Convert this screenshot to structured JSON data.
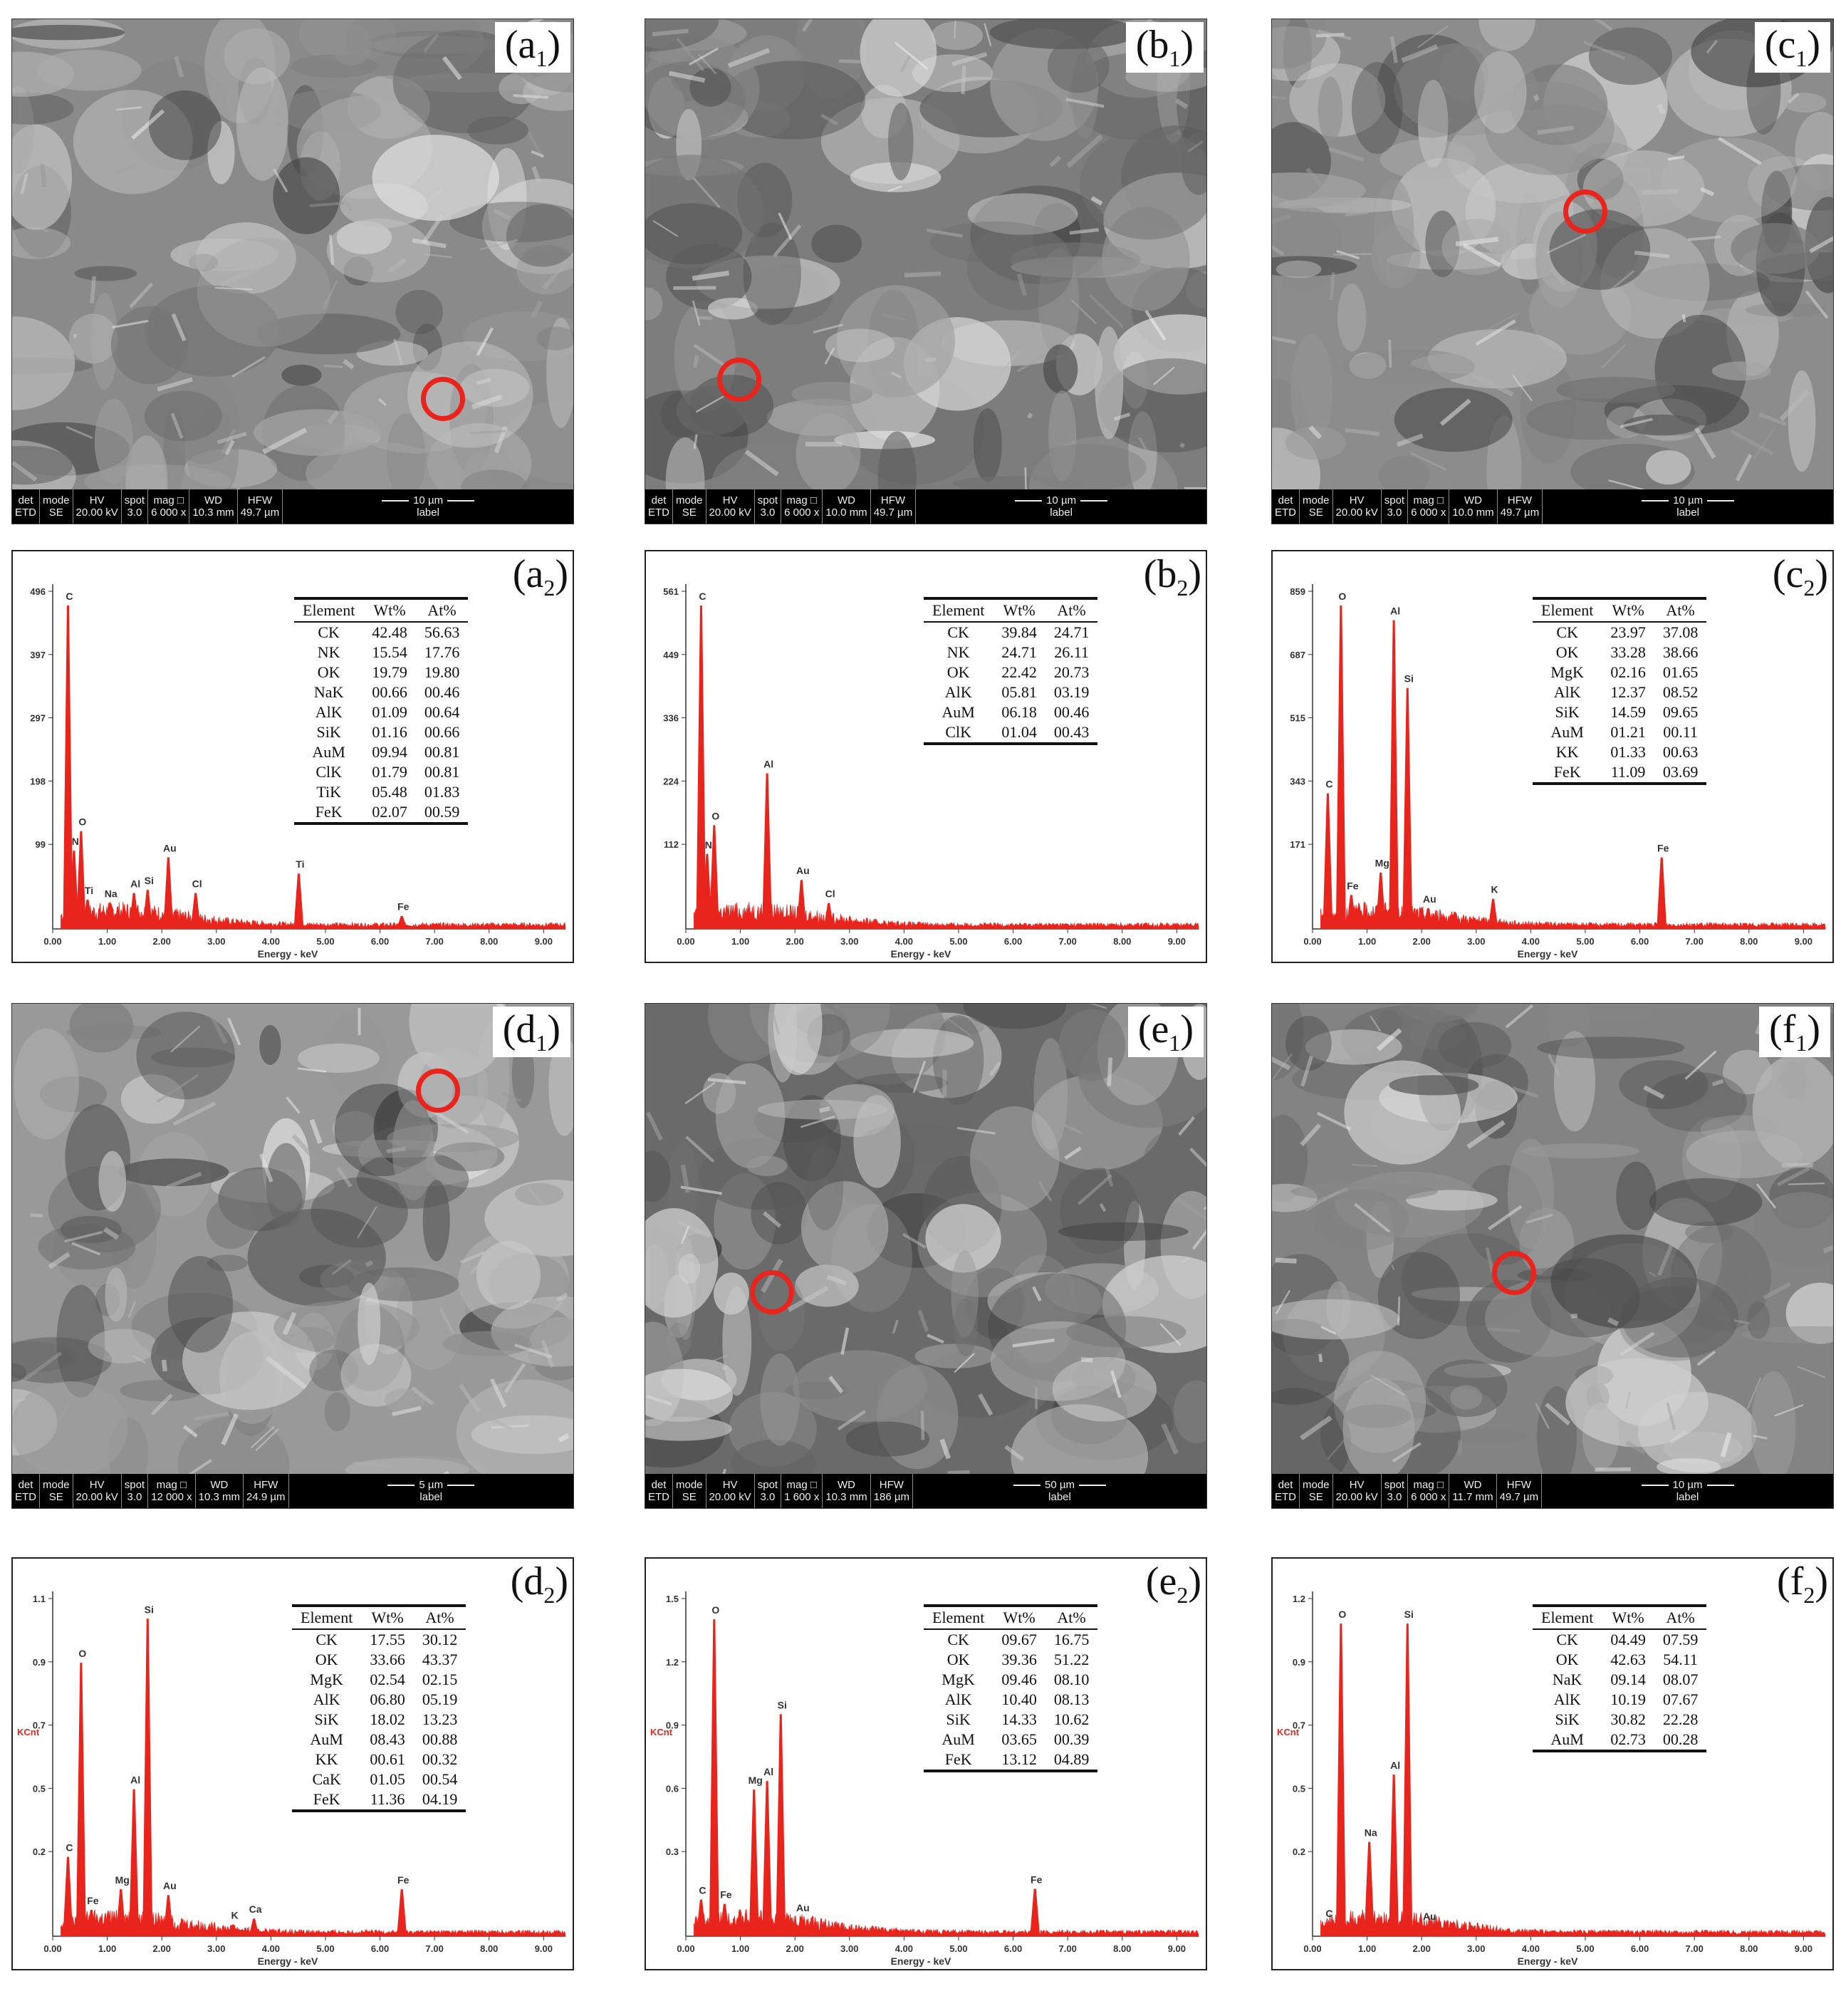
{
  "panels": [
    {
      "id": "a",
      "sem_label": "a",
      "eds_label": "a",
      "img_x": 16,
      "img_y": 26,
      "eds_x": 16,
      "eds_y": 772,
      "info": {
        "det": "ETD",
        "mode": "SE",
        "hv": "20.00 kV",
        "spot": "3.0",
        "mag": "6 000 x",
        "wd": "10.3 mm",
        "hfw": "49.7 µm",
        "scale": "10 µm",
        "label": "label"
      },
      "circle": [
        605,
        533
      ],
      "tone": "#8a8a8a",
      "table": {
        "left": 395,
        "top": 64,
        "rows": [
          [
            "CK",
            "42.48",
            "56.63"
          ],
          [
            "NK",
            "15.54",
            "17.76"
          ],
          [
            "OK",
            "19.79",
            "19.80"
          ],
          [
            "NaK",
            "00.66",
            "00.46"
          ],
          [
            "AlK",
            "01.09",
            "00.64"
          ],
          [
            "SiK",
            "01.16",
            "00.66"
          ],
          [
            "AuM",
            "09.94",
            "00.81"
          ],
          [
            "ClK",
            "01.79",
            "00.81"
          ],
          [
            "TiK",
            "05.48",
            "01.83"
          ],
          [
            "FeK",
            "02.07",
            "00.59"
          ]
        ]
      },
      "chart": {
        "yticks": [
          "496",
          "397",
          "297",
          "198",
          "99"
        ],
        "ymax": 496,
        "peaks": [
          [
            0.28,
            496,
            "C"
          ],
          [
            0.39,
            120,
            "N"
          ],
          [
            0.52,
            150,
            "O"
          ],
          [
            0.64,
            45,
            "Ti"
          ],
          [
            1.04,
            40,
            "Na"
          ],
          [
            1.49,
            55,
            "Al"
          ],
          [
            1.74,
            60,
            "Si"
          ],
          [
            2.12,
            110,
            "Au"
          ],
          [
            2.62,
            55,
            "Cl"
          ],
          [
            4.51,
            85,
            "Ti"
          ],
          [
            6.4,
            20,
            "Fe"
          ]
        ],
        "ylabel": ""
      }
    },
    {
      "id": "b",
      "sem_label": "b",
      "eds_label": "b",
      "img_x": 905,
      "img_y": 26,
      "eds_x": 905,
      "eds_y": 772,
      "info": {
        "det": "ETD",
        "mode": "SE",
        "hv": "20.00 kV",
        "spot": "3.0",
        "mag": "6 000 x",
        "wd": "10.0 mm",
        "hfw": "49.7 µm",
        "scale": "10 µm",
        "label": "label"
      },
      "circle": [
        132,
        506
      ],
      "tone": "#7d7d7d",
      "table": {
        "left": 390,
        "top": 64,
        "rows": [
          [
            "CK",
            "39.84",
            "24.71"
          ],
          [
            "NK",
            "24.71",
            "26.11"
          ],
          [
            "OK",
            "22.42",
            "20.73"
          ],
          [
            "AlK",
            "05.81",
            "03.19"
          ],
          [
            "AuM",
            "06.18",
            "00.46"
          ],
          [
            "ClK",
            "01.04",
            "00.43"
          ]
        ]
      },
      "chart": {
        "yticks": [
          "561",
          "449",
          "336",
          "224",
          "112"
        ],
        "ymax": 561,
        "peaks": [
          [
            0.28,
            561,
            "C"
          ],
          [
            0.39,
            130,
            "N"
          ],
          [
            0.52,
            180,
            "O"
          ],
          [
            1.49,
            270,
            "Al"
          ],
          [
            2.12,
            85,
            "Au"
          ],
          [
            2.62,
            45,
            "Cl"
          ]
        ],
        "ylabel": ""
      }
    },
    {
      "id": "c",
      "sem_label": "c",
      "eds_label": "c",
      "img_x": 1785,
      "img_y": 26,
      "eds_x": 1785,
      "eds_y": 772,
      "info": {
        "det": "ETD",
        "mode": "SE",
        "hv": "20.00 kV",
        "spot": "3.0",
        "mag": "6 000 x",
        "wd": "10.0 mm",
        "hfw": "49.7 µm",
        "scale": "10 µm",
        "label": "label"
      },
      "circle": [
        440,
        270
      ],
      "tone": "#8c8c8c",
      "table": {
        "left": 365,
        "top": 64,
        "rows": [
          [
            "CK",
            "23.97",
            "37.08"
          ],
          [
            "OK",
            "33.28",
            "38.66"
          ],
          [
            "MgK",
            "02.16",
            "01.65"
          ],
          [
            "AlK",
            "12.37",
            "08.52"
          ],
          [
            "SiK",
            "14.59",
            "09.65"
          ],
          [
            "AuM",
            "01.21",
            "00.11"
          ],
          [
            "KK",
            "01.33",
            "00.63"
          ],
          [
            "FeK",
            "11.09",
            "03.69"
          ]
        ]
      },
      "chart": {
        "yticks": [
          "859",
          "687",
          "515",
          "343",
          "171"
        ],
        "ymax": 859,
        "peaks": [
          [
            0.28,
            360,
            "C"
          ],
          [
            0.52,
            859,
            "O"
          ],
          [
            0.71,
            90,
            "Fe"
          ],
          [
            1.25,
            150,
            "Mg"
          ],
          [
            1.49,
            820,
            "Al"
          ],
          [
            1.74,
            640,
            "Si"
          ],
          [
            2.12,
            55,
            "Au"
          ],
          [
            3.31,
            80,
            "K"
          ],
          [
            6.4,
            190,
            "Fe"
          ]
        ],
        "ylabel": ""
      }
    },
    {
      "id": "d",
      "sem_label": "d",
      "eds_label": "d",
      "img_x": 16,
      "img_y": 1408,
      "eds_x": 16,
      "eds_y": 2186,
      "info": {
        "det": "ETD",
        "mode": "SE",
        "hv": "20.00 kV",
        "spot": "3.0",
        "mag": "12 000 x",
        "wd": "10.3 mm",
        "hfw": "24.9 µm",
        "scale": "5 µm",
        "label": "label"
      },
      "circle": [
        598,
        122
      ],
      "tone": "#999999",
      "table": {
        "left": 392,
        "top": 64,
        "rows": [
          [
            "CK",
            "17.55",
            "30.12"
          ],
          [
            "OK",
            "33.66",
            "43.37"
          ],
          [
            "MgK",
            "02.54",
            "02.15"
          ],
          [
            "AlK",
            "06.80",
            "05.19"
          ],
          [
            "SiK",
            "18.02",
            "13.23"
          ],
          [
            "AuM",
            "08.43",
            "00.88"
          ],
          [
            "KK",
            "00.61",
            "00.32"
          ],
          [
            "CaK",
            "01.05",
            "00.54"
          ],
          [
            "FeK",
            "11.36",
            "04.19"
          ]
        ]
      },
      "chart": {
        "yticks": [
          "1.1",
          "0.9",
          "0.7",
          "0.5",
          "0.2"
        ],
        "ymax": 1.1,
        "peaks": [
          [
            0.28,
            0.27,
            "C"
          ],
          [
            0.52,
            0.93,
            "O"
          ],
          [
            0.71,
            0.09,
            "Fe"
          ],
          [
            1.25,
            0.16,
            "Mg"
          ],
          [
            1.49,
            0.5,
            "Al"
          ],
          [
            1.74,
            1.08,
            "Si"
          ],
          [
            2.12,
            0.14,
            "Au"
          ],
          [
            3.31,
            0.04,
            "K"
          ],
          [
            3.69,
            0.06,
            "Ca"
          ],
          [
            6.4,
            0.16,
            "Fe"
          ]
        ],
        "ylabel": "KCnt"
      }
    },
    {
      "id": "e",
      "sem_label": "e",
      "eds_label": "e",
      "img_x": 905,
      "img_y": 1408,
      "eds_x": 905,
      "eds_y": 2186,
      "info": {
        "det": "ETD",
        "mode": "SE",
        "hv": "20.00 kV",
        "spot": "3.0",
        "mag": "1 600 x",
        "wd": "10.3 mm",
        "hfw": "186 µm",
        "scale": "50 µm",
        "label": "label"
      },
      "circle": [
        178,
        405
      ],
      "tone": "#6a6a6a",
      "table": {
        "left": 390,
        "top": 64,
        "rows": [
          [
            "CK",
            "09.67",
            "16.75"
          ],
          [
            "OK",
            "39.36",
            "51.22"
          ],
          [
            "MgK",
            "09.46",
            "08.10"
          ],
          [
            "AlK",
            "10.40",
            "08.13"
          ],
          [
            "SiK",
            "14.33",
            "10.62"
          ],
          [
            "AuM",
            "03.65",
            "00.39"
          ],
          [
            "FeK",
            "13.12",
            "04.89"
          ]
        ]
      },
      "chart": {
        "yticks": [
          "1.5",
          "1.2",
          "0.9",
          "0.6",
          "0.3"
        ],
        "ymax": 1.5,
        "peaks": [
          [
            0.28,
            0.17,
            "C"
          ],
          [
            0.52,
            1.47,
            "O"
          ],
          [
            0.71,
            0.15,
            "Fe"
          ],
          [
            1.25,
            0.68,
            "Mg"
          ],
          [
            1.49,
            0.72,
            "Al"
          ],
          [
            1.74,
            1.03,
            "Si"
          ],
          [
            2.12,
            0.09,
            "Au"
          ],
          [
            6.4,
            0.22,
            "Fe"
          ]
        ],
        "ylabel": "KCnt"
      }
    },
    {
      "id": "f",
      "sem_label": "f",
      "eds_label": "f",
      "img_x": 1785,
      "img_y": 1408,
      "eds_x": 1785,
      "eds_y": 2186,
      "info": {
        "det": "ETD",
        "mode": "SE",
        "hv": "20.00 kV",
        "spot": "3.0",
        "mag": "6 000 x",
        "wd": "11.7 mm",
        "hfw": "49.7 µm",
        "scale": "10 µm",
        "label": "label"
      },
      "circle": [
        340,
        378
      ],
      "tone": "#838383",
      "table": {
        "left": 365,
        "top": 64,
        "rows": [
          [
            "CK",
            "04.49",
            "07.59"
          ],
          [
            "OK",
            "42.63",
            "54.11"
          ],
          [
            "NaK",
            "09.14",
            "08.07"
          ],
          [
            "AlK",
            "10.19",
            "07.67"
          ],
          [
            "SiK",
            "30.82",
            "22.28"
          ],
          [
            "AuM",
            "02.73",
            "00.28"
          ]
        ]
      },
      "chart": {
        "yticks": [
          "1.2",
          "0.9",
          "0.7",
          "0.5",
          "0.2"
        ],
        "ymax": 1.2,
        "peaks": [
          [
            0.28,
            0.05,
            "C"
          ],
          [
            0.52,
            1.16,
            "O"
          ],
          [
            1.04,
            0.35,
            "Na"
          ],
          [
            1.49,
            0.6,
            "Al"
          ],
          [
            1.74,
            1.16,
            "Si"
          ],
          [
            2.12,
            0.04,
            "Au"
          ]
        ],
        "ylabel": "KCnt"
      }
    }
  ],
  "info_headers": {
    "det": "det",
    "mode": "mode",
    "hv": "HV",
    "spot": "spot",
    "mag": "mag □",
    "wd": "WD",
    "hfw": "HFW"
  },
  "table_headers": [
    "Element",
    "Wt%",
    "At%"
  ],
  "axis": {
    "xlabel": "Energy - keV",
    "xticks": [
      "0.00",
      "1.00",
      "2.00",
      "3.00",
      "4.00",
      "5.00",
      "6.00",
      "7.00",
      "8.00",
      "9.00"
    ],
    "xmax": 9.4
  },
  "colors": {
    "spectrum": "#e8241c",
    "circle": "#e8241c"
  }
}
